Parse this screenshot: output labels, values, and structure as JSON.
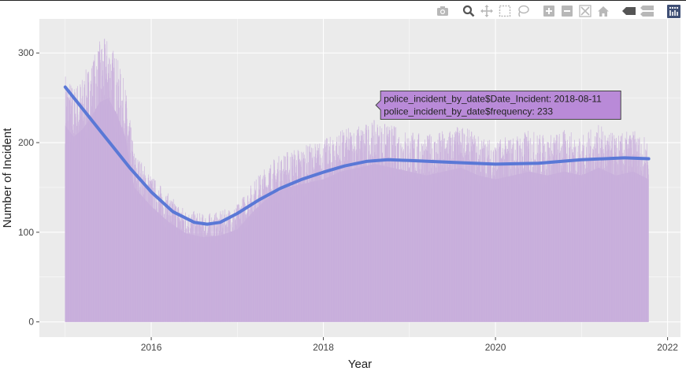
{
  "modebar": {
    "buttons": [
      {
        "icon": "camera-icon"
      },
      {
        "icon": "zoom-icon"
      },
      {
        "icon": "pan-icon"
      },
      {
        "icon": "box-select-icon"
      },
      {
        "icon": "lasso-select-icon"
      },
      {
        "icon": "zoom-in-icon"
      },
      {
        "icon": "zoom-out-icon"
      },
      {
        "icon": "autoscale-icon"
      },
      {
        "icon": "reset-axes-icon"
      },
      {
        "icon": "hover-closest-icon"
      },
      {
        "icon": "hover-compare-icon"
      },
      {
        "icon": "plotly-logo-icon"
      }
    ]
  },
  "colors": {
    "panel": "#ebebeb",
    "grid": "#ffffff",
    "area": "#c9b0dc",
    "smooth": "#5a78d6",
    "tooltip_bg": "#b98ad8",
    "tooltip_border": "#444444"
  },
  "tooltip": {
    "line1": "police_incident_by_date$Date_Incident: 2018-08-11",
    "line2": "police_incident_by_date$frequency: 233"
  },
  "chart_data": {
    "type": "area",
    "title": "",
    "xlabel": "Year",
    "ylabel": "Number of Incident",
    "xlim": [
      2014.7,
      2022.15
    ],
    "ylim": [
      -17,
      338
    ],
    "x_ticks": [
      2016,
      2018,
      2020,
      2022
    ],
    "x_tick_labels": [
      "2016",
      "2018",
      "2020",
      "2022"
    ],
    "y_ticks": [
      0,
      100,
      200,
      300
    ],
    "y_tick_labels": [
      "0",
      "100",
      "200",
      "300"
    ],
    "grid": true,
    "series": [
      {
        "kind": "daily_area",
        "x": [
          2015.0,
          2015.1,
          2015.2,
          2015.3,
          2015.4,
          2015.5,
          2015.6,
          2015.7,
          2015.8,
          2016.0,
          2016.2,
          2016.4,
          2016.6,
          2016.8,
          2017.0,
          2017.2,
          2017.4,
          2017.6,
          2017.8,
          2018.0,
          2018.2,
          2018.4,
          2018.6,
          2018.8,
          2019.0,
          2019.2,
          2019.4,
          2019.6,
          2019.8,
          2020.0,
          2020.2,
          2020.4,
          2020.6,
          2020.8,
          2021.0,
          2021.2,
          2021.4,
          2021.6,
          2021.78
        ],
        "values": [
          255,
          240,
          250,
          265,
          285,
          290,
          270,
          240,
          175,
          150,
          130,
          115,
          110,
          112,
          120,
          145,
          165,
          175,
          180,
          185,
          195,
          200,
          205,
          200,
          195,
          190,
          195,
          200,
          190,
          185,
          190,
          195,
          190,
          195,
          190,
          200,
          190,
          195,
          185
        ]
      },
      {
        "kind": "smooth",
        "x": [
          2015.0,
          2015.25,
          2015.5,
          2015.75,
          2016.0,
          2016.25,
          2016.5,
          2016.65,
          2016.8,
          2017.0,
          2017.25,
          2017.5,
          2017.75,
          2018.0,
          2018.25,
          2018.5,
          2018.75,
          2019.0,
          2019.5,
          2020.0,
          2020.5,
          2021.0,
          2021.5,
          2021.78
        ],
        "values": [
          262,
          232,
          202,
          172,
          145,
          123,
          111,
          109,
          111,
          121,
          136,
          149,
          159,
          167,
          174,
          179,
          181,
          180,
          178,
          176,
          177,
          181,
          183,
          182
        ]
      }
    ],
    "hover_point": {
      "x": 2018.61,
      "y": 233
    }
  }
}
